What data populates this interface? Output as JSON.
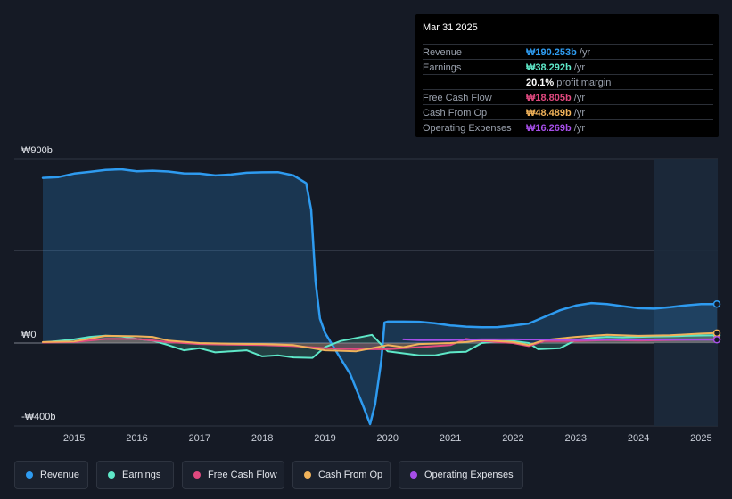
{
  "tooltip": {
    "date": "Mar 31 2025",
    "rows": [
      {
        "label": "Revenue",
        "value": "₩190.253b",
        "unit": " /yr",
        "color": "#2e9bf0"
      },
      {
        "label": "Earnings",
        "value": "₩38.292b",
        "unit": " /yr",
        "color": "#5ee8c8"
      },
      {
        "label": "",
        "value": "20.1%",
        "unit": " profit margin",
        "color": "#ffffff"
      },
      {
        "label": "Free Cash Flow",
        "value": "₩18.805b",
        "unit": " /yr",
        "color": "#e0497f"
      },
      {
        "label": "Cash From Op",
        "value": "₩48.489b",
        "unit": " /yr",
        "color": "#f0b25a"
      },
      {
        "label": "Operating Expenses",
        "value": "₩16.269b",
        "unit": " /yr",
        "color": "#a64ee8"
      }
    ]
  },
  "legend": [
    {
      "label": "Revenue",
      "color": "#2e9bf0"
    },
    {
      "label": "Earnings",
      "color": "#5ee8c8"
    },
    {
      "label": "Free Cash Flow",
      "color": "#e0497f"
    },
    {
      "label": "Cash From Op",
      "color": "#f0b25a"
    },
    {
      "label": "Operating Expenses",
      "color": "#a64ee8"
    }
  ],
  "chart_data": {
    "type": "line",
    "x_unit": "year",
    "y_labels": [
      {
        "value": 900,
        "text": "₩900b"
      },
      {
        "value": 0,
        "text": "₩0"
      },
      {
        "value": -400,
        "text": "-₩400b"
      }
    ],
    "ylim": [
      -400,
      900
    ],
    "xlim": [
      2014.5,
      2025.25
    ],
    "x_ticks": [
      "2015",
      "2016",
      "2017",
      "2018",
      "2019",
      "2020",
      "2021",
      "2022",
      "2023",
      "2024",
      "2025"
    ],
    "forecast_start": 2024.25,
    "grid": true,
    "series": [
      {
        "name": "Revenue",
        "color": "#2e9bf0",
        "area": true,
        "points": [
          [
            2014.5,
            806
          ],
          [
            2014.75,
            810
          ],
          [
            2015,
            827
          ],
          [
            2015.25,
            835
          ],
          [
            2015.5,
            845
          ],
          [
            2015.75,
            848
          ],
          [
            2016,
            838
          ],
          [
            2016.25,
            841
          ],
          [
            2016.5,
            837
          ],
          [
            2016.75,
            828
          ],
          [
            2017,
            827
          ],
          [
            2017.25,
            818
          ],
          [
            2017.5,
            822
          ],
          [
            2017.75,
            831
          ],
          [
            2018,
            833
          ],
          [
            2018.25,
            834
          ],
          [
            2018.5,
            818
          ],
          [
            2018.7,
            780
          ],
          [
            2018.78,
            650
          ],
          [
            2018.85,
            300
          ],
          [
            2018.92,
            120
          ],
          [
            2019.0,
            50
          ],
          [
            2019.2,
            -50
          ],
          [
            2019.4,
            -150
          ],
          [
            2019.6,
            -300
          ],
          [
            2019.72,
            -395
          ],
          [
            2019.8,
            -300
          ],
          [
            2019.9,
            -80
          ],
          [
            2019.95,
            100
          ],
          [
            2020,
            105
          ],
          [
            2020.25,
            105
          ],
          [
            2020.5,
            104
          ],
          [
            2020.75,
            97
          ],
          [
            2021,
            86
          ],
          [
            2021.25,
            80
          ],
          [
            2021.5,
            77
          ],
          [
            2021.75,
            78
          ],
          [
            2022,
            85
          ],
          [
            2022.25,
            95
          ],
          [
            2022.5,
            128
          ],
          [
            2022.75,
            160
          ],
          [
            2023,
            183
          ],
          [
            2023.25,
            195
          ],
          [
            2023.5,
            190
          ],
          [
            2023.75,
            180
          ],
          [
            2024,
            170
          ],
          [
            2024.25,
            168
          ],
          [
            2024.5,
            175
          ],
          [
            2024.75,
            184
          ],
          [
            2025,
            190
          ],
          [
            2025.25,
            190.253
          ]
        ]
      },
      {
        "name": "Earnings",
        "color": "#5ee8c8",
        "area": true,
        "points": [
          [
            2014.5,
            3
          ],
          [
            2014.75,
            10
          ],
          [
            2015,
            18
          ],
          [
            2015.25,
            30
          ],
          [
            2015.5,
            36
          ],
          [
            2015.75,
            33
          ],
          [
            2016,
            20
          ],
          [
            2016.25,
            12
          ],
          [
            2016.5,
            -10
          ],
          [
            2016.75,
            -35
          ],
          [
            2017,
            -25
          ],
          [
            2017.25,
            -45
          ],
          [
            2017.5,
            -40
          ],
          [
            2017.75,
            -35
          ],
          [
            2018,
            -65
          ],
          [
            2018.25,
            -60
          ],
          [
            2018.5,
            -70
          ],
          [
            2018.8,
            -72
          ],
          [
            2019,
            -20
          ],
          [
            2019.25,
            10
          ],
          [
            2019.5,
            25
          ],
          [
            2019.75,
            40
          ],
          [
            2020,
            -40
          ],
          [
            2020.25,
            -50
          ],
          [
            2020.5,
            -60
          ],
          [
            2020.75,
            -60
          ],
          [
            2021,
            -45
          ],
          [
            2021.25,
            -42
          ],
          [
            2021.5,
            0
          ],
          [
            2021.75,
            8
          ],
          [
            2022,
            10
          ],
          [
            2022.25,
            0
          ],
          [
            2022.4,
            -30
          ],
          [
            2022.75,
            -25
          ],
          [
            2023,
            15
          ],
          [
            2023.25,
            25
          ],
          [
            2023.5,
            30
          ],
          [
            2023.75,
            28
          ],
          [
            2024,
            30
          ],
          [
            2024.25,
            32
          ],
          [
            2024.5,
            33
          ],
          [
            2024.75,
            35
          ],
          [
            2025,
            37
          ],
          [
            2025.25,
            38.292
          ]
        ]
      },
      {
        "name": "Free Cash Flow",
        "color": "#e0497f",
        "area": true,
        "points": [
          [
            2014.5,
            2
          ],
          [
            2015,
            5
          ],
          [
            2015.5,
            20
          ],
          [
            2016,
            20
          ],
          [
            2016.5,
            5
          ],
          [
            2017,
            -5
          ],
          [
            2017.5,
            -8
          ],
          [
            2018,
            -10
          ],
          [
            2018.5,
            -15
          ],
          [
            2019,
            -25
          ],
          [
            2019.5,
            -30
          ],
          [
            2020,
            -30
          ],
          [
            2020.5,
            -20
          ],
          [
            2021,
            -10
          ],
          [
            2021.25,
            20
          ],
          [
            2021.5,
            10
          ],
          [
            2022,
            0
          ],
          [
            2022.25,
            -15
          ],
          [
            2022.5,
            10
          ],
          [
            2023,
            10
          ],
          [
            2023.5,
            15
          ],
          [
            2024,
            12
          ],
          [
            2024.5,
            15
          ],
          [
            2025,
            18
          ],
          [
            2025.25,
            18.805
          ]
        ]
      },
      {
        "name": "Cash From Op",
        "color": "#f0b25a",
        "area": true,
        "points": [
          [
            2014.5,
            5
          ],
          [
            2015,
            8
          ],
          [
            2015.5,
            35
          ],
          [
            2016,
            33
          ],
          [
            2016.25,
            30
          ],
          [
            2016.5,
            12
          ],
          [
            2017,
            0
          ],
          [
            2017.5,
            -3
          ],
          [
            2018,
            -5
          ],
          [
            2018.5,
            -10
          ],
          [
            2019,
            -35
          ],
          [
            2019.5,
            -40
          ],
          [
            2020,
            -10
          ],
          [
            2020.25,
            -20
          ],
          [
            2020.5,
            -5
          ],
          [
            2021,
            0
          ],
          [
            2021.25,
            5
          ],
          [
            2021.5,
            15
          ],
          [
            2022,
            5
          ],
          [
            2022.25,
            -10
          ],
          [
            2022.5,
            15
          ],
          [
            2023,
            30
          ],
          [
            2023.25,
            35
          ],
          [
            2023.5,
            40
          ],
          [
            2024,
            35
          ],
          [
            2024.5,
            38
          ],
          [
            2025,
            46
          ],
          [
            2025.25,
            48.489
          ]
        ]
      },
      {
        "name": "Operating Expenses",
        "color": "#a64ee8",
        "area": false,
        "points": [
          [
            2020.25,
            18
          ],
          [
            2020.5,
            14
          ],
          [
            2021,
            15
          ],
          [
            2021.5,
            18
          ],
          [
            2022,
            18
          ],
          [
            2022.5,
            16
          ],
          [
            2023,
            15
          ],
          [
            2023.5,
            16
          ],
          [
            2024,
            16
          ],
          [
            2024.5,
            16
          ],
          [
            2025,
            16.2
          ],
          [
            2025.25,
            16.269
          ]
        ]
      }
    ]
  }
}
